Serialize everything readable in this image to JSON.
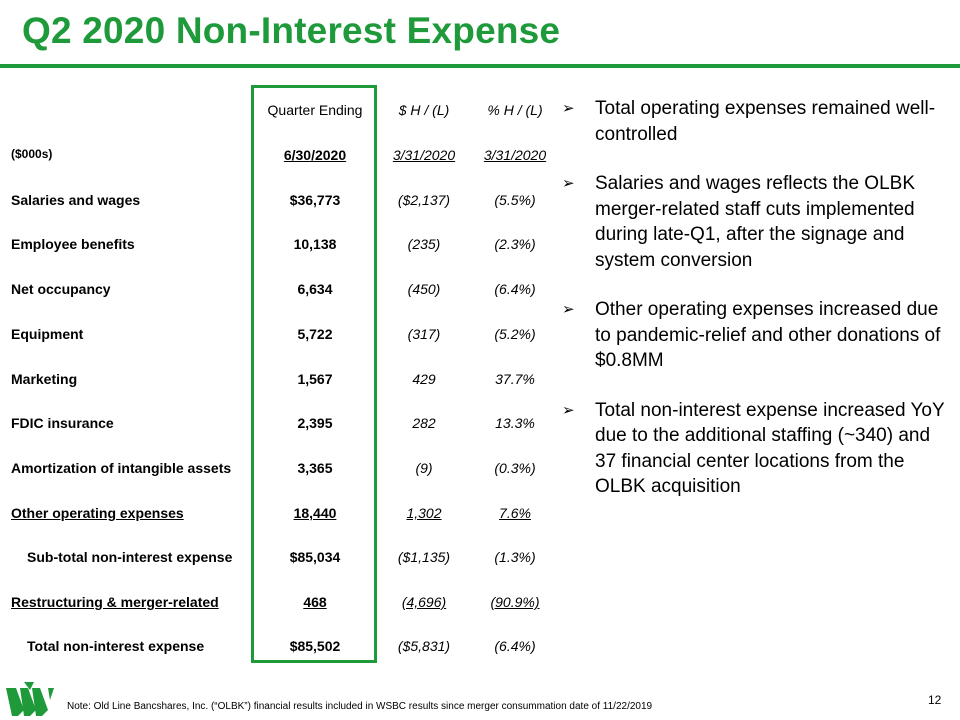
{
  "title": "Q2 2020 Non-Interest Expense",
  "colors": {
    "brand_green": "#1f9a3b"
  },
  "table": {
    "header": {
      "c1": "Quarter Ending",
      "c2": "$ H / (L)",
      "c3": "% H / (L)"
    },
    "subheader": {
      "label": "($000s)",
      "c1": "6/30/2020",
      "c2": "3/31/2020",
      "c3": "3/31/2020"
    },
    "rows": [
      {
        "label": "Salaries and wages",
        "c1": "$36,773",
        "c2": "($2,137)",
        "c3": "(5.5%)"
      },
      {
        "label": "Employee benefits",
        "c1": "10,138",
        "c2": "(235)",
        "c3": "(2.3%)"
      },
      {
        "label": "Net occupancy",
        "c1": "6,634",
        "c2": "(450)",
        "c3": "(6.4%)"
      },
      {
        "label": "Equipment",
        "c1": "5,722",
        "c2": "(317)",
        "c3": "(5.2%)"
      },
      {
        "label": "Marketing",
        "c1": "1,567",
        "c2": "429",
        "c3": "37.7%"
      },
      {
        "label": "FDIC insurance",
        "c1": "2,395",
        "c2": "282",
        "c3": "13.3%"
      },
      {
        "label": "Amortization of intangible assets",
        "c1": "3,365",
        "c2": "(9)",
        "c3": "(0.3%)"
      },
      {
        "label": "Other operating expenses",
        "c1": "18,440",
        "c2": "1,302",
        "c3": "7.6%"
      },
      {
        "label": "Sub-total non-interest expense",
        "c1": "$85,034",
        "c2": "($1,135)",
        "c3": "(1.3%)"
      },
      {
        "label": "Restructuring & merger-related",
        "c1": "468",
        "c2": "(4,696)",
        "c3": "(90.9%)"
      },
      {
        "label": "Total non-interest expense",
        "c1": "$85,502",
        "c2": "($5,831)",
        "c3": "(6.4%)"
      }
    ]
  },
  "bullets": [
    "Total operating expenses remained well-controlled",
    "Salaries and wages reflects the OLBK merger-related staff cuts implemented during late-Q1, after the signage and system conversion",
    "Other operating expenses increased due to pandemic-relief and other donations of $0.8MM",
    "Total non-interest expense increased YoY due to the additional staffing (~340) and 37 financial center locations from the OLBK acquisition"
  ],
  "footer_note": "Note: Old Line Bancshares, Inc. (“OLBK”) financial results included in WSBC results since merger consummation date of 11/22/2019",
  "page_number": "12",
  "icons": {
    "bullet": "arrow-bullet-icon",
    "logo": "wesbanco-logo-icon"
  }
}
